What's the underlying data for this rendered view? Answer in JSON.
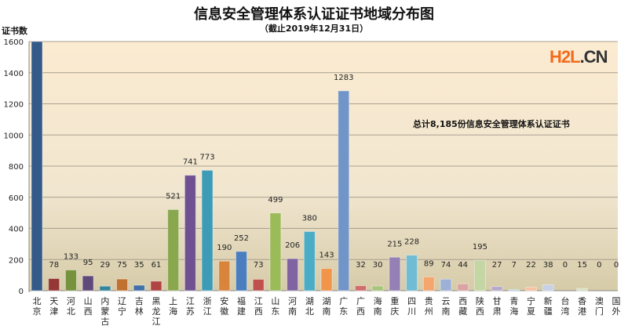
{
  "chart_data": {
    "type": "bar",
    "title": "信息安全管理体系认证证书地域分布图",
    "subtitle": "（截止2019年12月31日）",
    "ylabel": "证书数",
    "xlabel": "",
    "ylim": [
      0,
      1600
    ],
    "yticks": [
      0,
      200,
      400,
      600,
      800,
      1000,
      1200,
      1400,
      1600
    ],
    "grid": true,
    "annotation": "总计8,185份信息安全管理体系认证证书",
    "categories": [
      "北京",
      "天津",
      "河北",
      "山西",
      "内蒙古",
      "辽宁",
      "吉林",
      "黑龙江",
      "上海",
      "江苏",
      "浙江",
      "安徽",
      "福建",
      "江西",
      "山东",
      "河南",
      "湖北",
      "湖南",
      "广东",
      "广西",
      "海南",
      "重庆",
      "四川",
      "贵州",
      "云南",
      "西藏",
      "陕西",
      "甘肃",
      "青海",
      "宁夏",
      "新疆",
      "台湾",
      "香港",
      "澳门",
      "国外"
    ],
    "values": [
      1602,
      78,
      133,
      95,
      29,
      75,
      35,
      61,
      521,
      741,
      773,
      190,
      252,
      73,
      499,
      206,
      380,
      143,
      1283,
      32,
      30,
      215,
      228,
      89,
      74,
      44,
      195,
      27,
      7,
      22,
      38,
      0,
      15,
      0,
      0
    ],
    "data_labels_shown": [
      false,
      true,
      true,
      true,
      true,
      true,
      true,
      true,
      true,
      true,
      true,
      true,
      true,
      true,
      true,
      true,
      true,
      true,
      true,
      true,
      true,
      true,
      true,
      true,
      true,
      true,
      true,
      true,
      true,
      true,
      true,
      true,
      true,
      true,
      true
    ],
    "colors": [
      "#335a88",
      "#953735",
      "#76923c",
      "#5f497a",
      "#31859c",
      "#c0712f",
      "#4070a8",
      "#b04442",
      "#89a84e",
      "#6f5192",
      "#3d9bb5",
      "#d8843a",
      "#4a7ebe",
      "#c0504d",
      "#9bbb59",
      "#8064a2",
      "#4bacc6",
      "#f0954a",
      "#7295c9",
      "#d06c6a",
      "#a8c47a",
      "#9480b5",
      "#6fbcd4",
      "#f5a66d",
      "#9db1d6",
      "#dba3a2",
      "#c4d6a4",
      "#b6a8c9",
      "#a3d3e0",
      "#f8c0a0",
      "#c6d0e6",
      "#e8c8c8",
      "#d3e1c0",
      "#d5cde0",
      "#cce5ec"
    ]
  },
  "watermark": {
    "part1": "H2L",
    "part2": ".CN"
  }
}
